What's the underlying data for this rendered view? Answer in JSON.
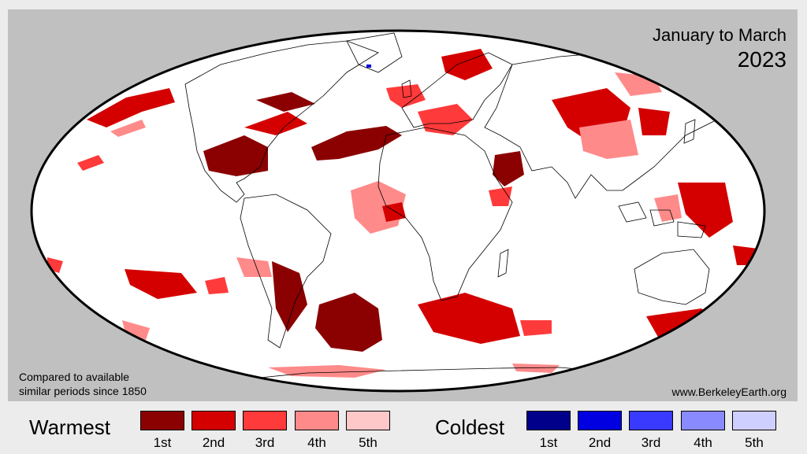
{
  "header": {
    "period": "January to March",
    "year": "2023"
  },
  "footer": {
    "note_line1": "Compared to available",
    "note_line2": "similar periods since 1850",
    "website": "www.BerkeleyEarth.org"
  },
  "legend": {
    "warm": {
      "title": "Warmest",
      "items": [
        {
          "label": "1st",
          "color": "#8b0000"
        },
        {
          "label": "2nd",
          "color": "#d40000"
        },
        {
          "label": "3rd",
          "color": "#ff3a3a"
        },
        {
          "label": "4th",
          "color": "#ff8a8a"
        },
        {
          "label": "5th",
          "color": "#ffc8c8"
        }
      ]
    },
    "cold": {
      "title": "Coldest",
      "items": [
        {
          "label": "1st",
          "color": "#00008b"
        },
        {
          "label": "2nd",
          "color": "#0000e0"
        },
        {
          "label": "3rd",
          "color": "#3a3aff"
        },
        {
          "label": "4th",
          "color": "#8a8aff"
        },
        {
          "label": "5th",
          "color": "#cfcfff"
        }
      ]
    }
  },
  "colors": {
    "ocean_background": "#ffffff",
    "outside_globe": "#c0c0c0",
    "coastline": "#000000"
  }
}
